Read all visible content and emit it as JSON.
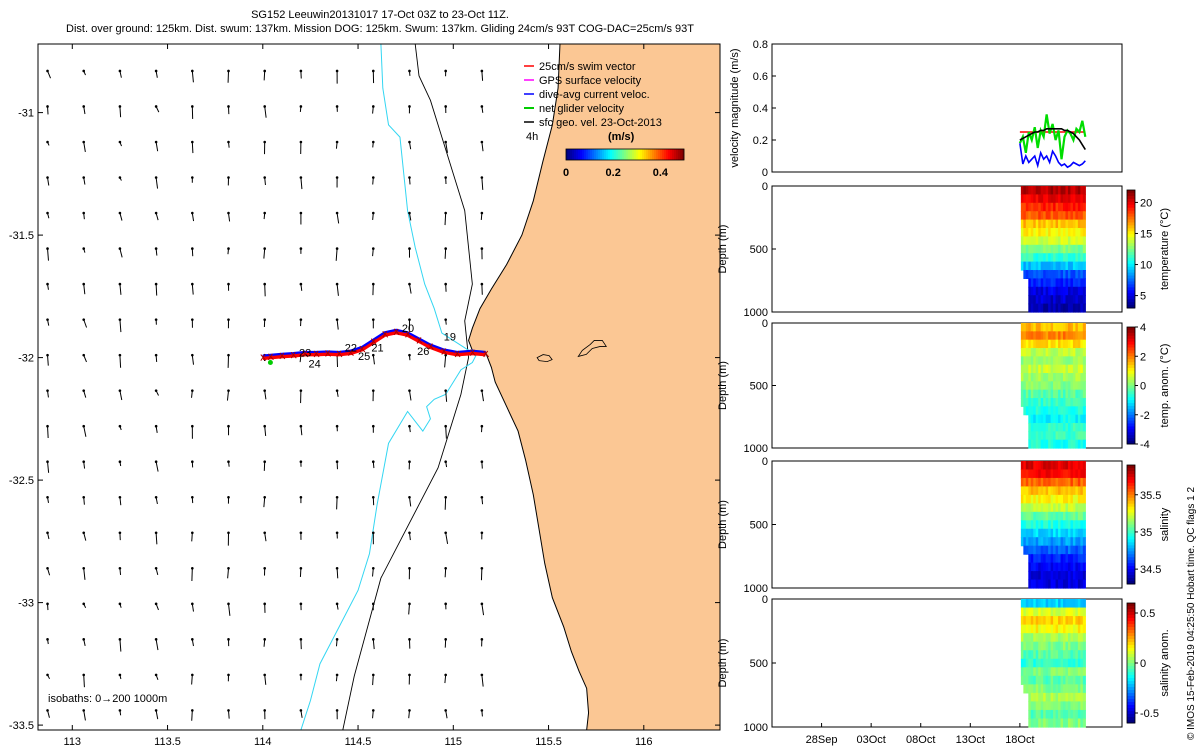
{
  "header": {
    "line1": "SG152 Leeuwin20131017 17-Oct 03Z to 23-Oct 11Z.",
    "line2": "Dist. over ground: 125km. Dist. swum: 137km. Mission DOG: 125km. Swum: 137km. Gliding 24cm/s 93T COG-DAC=25cm/s 93T"
  },
  "credit": "© IMOS 15-Feb-2019 04:25:50 Hobart time. QC flags 1  2",
  "colors": {
    "land": "#fbc794",
    "isobath_200": "#33d6f2",
    "coast": "#000000",
    "swim": "#ff0000",
    "gps": "#ff00ff",
    "dac": "#0000ff",
    "net": "#00cc00",
    "geo": "#000000"
  },
  "chart_data": [
    {
      "type": "scatter",
      "name": "map",
      "xlim": [
        112.82,
        116.4
      ],
      "ylim": [
        -33.52,
        -30.72
      ],
      "xticks": [
        "113",
        "113.5",
        "114",
        "114.5",
        "115",
        "115.5",
        "116"
      ],
      "xtick_values": [
        113,
        113.5,
        114,
        114.5,
        115,
        115.5,
        116
      ],
      "yticks": [
        "-31",
        "-31.5",
        "-32",
        "-32.5",
        "-33",
        "-33.5"
      ],
      "ytick_values": [
        -31,
        -31.5,
        -32,
        -32.5,
        -33,
        -33.5
      ],
      "legend": {
        "placement": "top-right",
        "items": [
          "25cm/s swim vector",
          "GPS surface velocity",
          "dive-avg current veloc.",
          "net glider velocity",
          "sfc geo. vel. 23-Oct-2013"
        ]
      },
      "interval_label": "4h",
      "colorbar": {
        "label": "(m/s)",
        "ticks": [
          "0",
          "0.2",
          "0.4"
        ],
        "tick_values": [
          0,
          0.2,
          0.4
        ],
        "range": [
          0,
          0.5
        ]
      },
      "isobath_note": "isobaths: 0→200  1000m",
      "day_labels": [
        {
          "text": "19",
          "lon": 114.95,
          "lat": -31.93
        },
        {
          "text": "20",
          "lon": 114.73,
          "lat": -31.895
        },
        {
          "text": "21",
          "lon": 114.57,
          "lat": -31.975
        },
        {
          "text": "22",
          "lon": 114.43,
          "lat": -31.975
        },
        {
          "text": "23",
          "lon": 114.19,
          "lat": -31.995
        },
        {
          "text": "24",
          "lon": 114.24,
          "lat": -32.04
        },
        {
          "text": "25",
          "lon": 114.5,
          "lat": -32.01
        },
        {
          "text": "26",
          "lon": 114.81,
          "lat": -31.99
        }
      ],
      "track": {
        "lon": [
          115.17,
          115.1,
          115.02,
          114.95,
          114.88,
          114.82,
          114.76,
          114.7,
          114.64,
          114.58,
          114.52,
          114.46,
          114.4,
          114.34,
          114.28,
          114.22,
          114.16,
          114.1,
          114.04,
          114.0
        ],
        "lat": [
          -31.985,
          -31.98,
          -31.985,
          -31.975,
          -31.955,
          -31.93,
          -31.905,
          -31.895,
          -31.905,
          -31.935,
          -31.965,
          -31.98,
          -31.985,
          -31.983,
          -31.985,
          -31.985,
          -31.99,
          -31.993,
          -31.997,
          -32.0
        ]
      },
      "coast": {
        "lon": [
          115.56,
          115.55,
          115.52,
          115.47,
          115.42,
          115.36,
          115.28,
          115.2,
          115.14,
          115.1,
          115.08,
          115.1,
          115.17,
          115.2,
          115.22,
          115.28,
          115.34,
          115.38,
          115.42,
          115.45,
          115.48,
          115.52,
          115.58,
          115.62,
          115.66,
          115.7,
          115.71,
          115.7
        ],
        "lat": [
          -30.72,
          -30.9,
          -31.05,
          -31.2,
          -31.36,
          -31.5,
          -31.62,
          -31.72,
          -31.8,
          -31.88,
          -31.93,
          -31.97,
          -31.98,
          -32.04,
          -32.1,
          -32.2,
          -32.3,
          -32.42,
          -32.56,
          -32.7,
          -32.84,
          -32.98,
          -33.1,
          -33.2,
          -33.28,
          -33.35,
          -33.45,
          -33.52
        ]
      },
      "isobath_200": {
        "lon": [
          114.62,
          114.63,
          114.66,
          114.72,
          114.74,
          114.76,
          114.8,
          114.85,
          114.9,
          114.94,
          115.0,
          115.06,
          115.12,
          115.1,
          115.04,
          115.0,
          114.96,
          114.9,
          114.86,
          114.88,
          114.84,
          114.8,
          114.76,
          114.66,
          114.6,
          114.56,
          114.5,
          114.4,
          114.3,
          114.25,
          114.2
        ],
        "lat": [
          -30.72,
          -30.9,
          -31.05,
          -31.1,
          -31.25,
          -31.4,
          -31.55,
          -31.7,
          -31.8,
          -31.9,
          -31.93,
          -31.96,
          -31.99,
          -32.02,
          -32.05,
          -32.1,
          -32.15,
          -32.17,
          -32.2,
          -32.25,
          -32.3,
          -32.26,
          -32.22,
          -32.35,
          -32.6,
          -32.8,
          -32.95,
          -33.1,
          -33.25,
          -33.4,
          -33.52
        ]
      },
      "isobath_1000": {
        "lon": [
          114.8,
          114.82,
          114.88,
          114.94,
          115.0,
          115.06,
          115.08,
          115.1,
          115.06,
          115.08,
          115.04,
          114.98,
          114.92,
          114.82,
          114.72,
          114.62,
          114.55,
          114.48,
          114.42
        ],
        "lat": [
          -30.72,
          -30.85,
          -30.95,
          -31.1,
          -31.25,
          -31.4,
          -31.55,
          -31.7,
          -31.85,
          -32.0,
          -32.15,
          -32.3,
          -32.45,
          -32.6,
          -32.75,
          -32.9,
          -33.1,
          -33.3,
          -33.52
        ]
      }
    },
    {
      "type": "line",
      "name": "velocity",
      "ylabel": "velocity magnitude (m/s)",
      "ylim": [
        0,
        0.8
      ],
      "yticks": [
        "0",
        "0.2",
        "0.4",
        "0.6",
        "0.8"
      ],
      "ytick_values": [
        0,
        0.2,
        0.4,
        0.6,
        0.8
      ],
      "x_days_from_sep23": [
        25.0,
        25.3,
        25.6,
        25.9,
        26.2,
        26.5,
        26.8,
        27.1,
        27.4,
        27.7,
        28.0,
        28.3,
        28.6,
        28.9,
        29.2,
        29.5,
        29.8,
        30.1,
        30.4,
        30.7,
        31.0,
        31.3,
        31.6
      ],
      "series": [
        {
          "name": "25cm/s swim vector",
          "color": "#ff0000",
          "values": [
            0.25,
            0.25,
            0.25,
            0.25,
            0.25,
            0.25,
            0.25,
            0.25,
            0.25,
            0.25,
            0.25,
            0.25,
            0.25,
            0.25,
            0.25,
            0.25,
            0.25,
            0.25,
            0.25,
            0.25,
            0.25,
            0.25,
            0.25
          ]
        },
        {
          "name": "net glider velocity",
          "color": "#00dd00",
          "values": [
            0.18,
            0.22,
            0.12,
            0.25,
            0.2,
            0.28,
            0.15,
            0.26,
            0.22,
            0.36,
            0.24,
            0.3,
            0.2,
            0.26,
            0.08,
            0.22,
            0.26,
            0.24,
            0.2,
            0.27,
            0.25,
            0.32,
            0.22
          ]
        },
        {
          "name": "dive-avg current veloc.",
          "color": "#0000ff",
          "values": [
            0.18,
            0.05,
            0.1,
            0.06,
            0.08,
            0.1,
            0.04,
            0.12,
            0.08,
            0.1,
            0.06,
            0.13,
            0.1,
            0.06,
            0.04,
            0.05,
            0.03,
            0.04,
            0.06,
            0.05,
            0.04,
            0.05,
            0.07
          ]
        },
        {
          "name": "sfc geo. vel. 23-Oct-2013",
          "color": "#000000",
          "values": [
            0.2,
            0.21,
            0.22,
            0.23,
            0.24,
            0.25,
            0.25,
            0.26,
            0.26,
            0.27,
            0.27,
            0.27,
            0.27,
            0.27,
            0.27,
            0.26,
            0.26,
            0.25,
            0.24,
            0.22,
            0.2,
            0.17,
            0.14
          ]
        }
      ]
    },
    {
      "type": "heatmap",
      "name": "temperature",
      "ylabel": "Depth (m)",
      "ylim": [
        0,
        1000
      ],
      "yticks": [
        "0",
        "500",
        "1000"
      ],
      "ytick_values": [
        0,
        500,
        1000
      ],
      "clabel": "temperature (°C)",
      "crange": [
        3,
        22
      ],
      "cticks": [
        "5",
        "10",
        "15",
        "20"
      ],
      "ctick_values": [
        5,
        10,
        15,
        20
      ],
      "profile": [
        21,
        20,
        19,
        18,
        16,
        15,
        14,
        12.5,
        11,
        9,
        7,
        6,
        5,
        4.5,
        4
      ]
    },
    {
      "type": "heatmap",
      "name": "temp anomaly",
      "ylabel": "Depth (m)",
      "ylim": [
        0,
        1000
      ],
      "yticks": [
        "0",
        "500",
        "1000"
      ],
      "ytick_values": [
        0,
        500,
        1000
      ],
      "clabel": "temp. anom. (°C)",
      "crange": [
        -4,
        4
      ],
      "cticks": [
        "-4",
        "-2",
        "0",
        "2",
        "4"
      ],
      "ctick_values": [
        -4,
        -2,
        0,
        2,
        4
      ],
      "profile": [
        1.5,
        2,
        1.2,
        0.5,
        0.2,
        0.6,
        0.3,
        0,
        -0.3,
        -0.6,
        -0.8,
        -1,
        -0.6,
        -0.5,
        -0.8
      ]
    },
    {
      "type": "heatmap",
      "name": "salinity",
      "ylabel": "Depth (m)",
      "ylim": [
        0,
        1000
      ],
      "yticks": [
        "0",
        "500",
        "1000"
      ],
      "ytick_values": [
        0,
        500,
        1000
      ],
      "clabel": "salinity",
      "crange": [
        34.3,
        35.9
      ],
      "cticks": [
        "34.5",
        "35",
        "35.5"
      ],
      "ctick_values": [
        34.5,
        35,
        35.5
      ],
      "profile": [
        35.75,
        35.7,
        35.55,
        35.4,
        35.3,
        35.2,
        35.05,
        34.95,
        34.85,
        34.75,
        34.65,
        34.55,
        34.5,
        34.45,
        34.45
      ]
    },
    {
      "type": "heatmap",
      "name": "salinity anomaly",
      "ylabel": "Depth (m)",
      "ylim": [
        0,
        1000
      ],
      "yticks": [
        "0",
        "500",
        "1000"
      ],
      "ytick_values": [
        0,
        500,
        1000
      ],
      "clabel": "salinity anom.",
      "crange": [
        -0.6,
        0.6
      ],
      "cticks": [
        "-0.5",
        "0",
        "0.5"
      ],
      "ctick_values": [
        -0.5,
        0,
        0.5
      ],
      "xticks": [
        "28Sep",
        "03Oct",
        "08Oct",
        "13Oct",
        "18Oct"
      ],
      "xtick_days": [
        5,
        10,
        15,
        20,
        25
      ],
      "profile": [
        -0.2,
        0.1,
        0.2,
        0.15,
        0.05,
        0,
        -0.05,
        -0.1,
        0,
        -0.05,
        0,
        0.05,
        0,
        -0.05,
        0
      ]
    }
  ]
}
